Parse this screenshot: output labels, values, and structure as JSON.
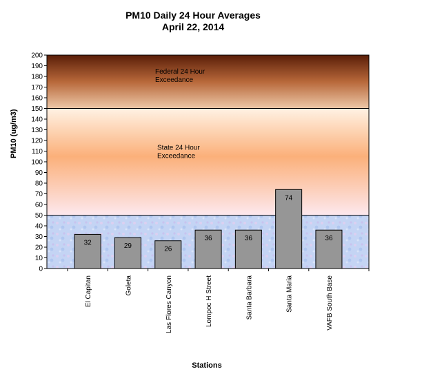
{
  "chart_data": {
    "type": "bar",
    "title": "PM10 Daily 24 Hour Averages",
    "subtitle": "April 22, 2014",
    "xlabel": "Stations",
    "ylabel": "PM10 (ug/m3)",
    "ylim": [
      0,
      200
    ],
    "ytick_step": 10,
    "categories": [
      "El Capitan",
      "Goleta",
      "Las Flores Canyon",
      "Lompoc H Street",
      "Santa Barbara",
      "Santa Maria",
      "VAFB South Base"
    ],
    "values": [
      32,
      29,
      26,
      36,
      36,
      74,
      36
    ],
    "bands": [
      {
        "from": 150,
        "to": 200,
        "label_lines": [
          "Federal 24 Hour",
          "Exceedance"
        ]
      },
      {
        "from": 50,
        "to": 150,
        "label_lines": [
          "State 24 Hour",
          "Exceedance"
        ]
      },
      {
        "from": 0,
        "to": 50,
        "label_lines": []
      }
    ],
    "bar_color": "#969696",
    "colors": {
      "federal_top": "#5a1e08",
      "federal_mid": "#b8683a",
      "federal_bottom": "#ecc8a8",
      "state_top": "#fff2e4",
      "state_mid": "#fbb07a",
      "state_bottom": "#fde8ee",
      "good_band": "#c4d4f4"
    }
  }
}
